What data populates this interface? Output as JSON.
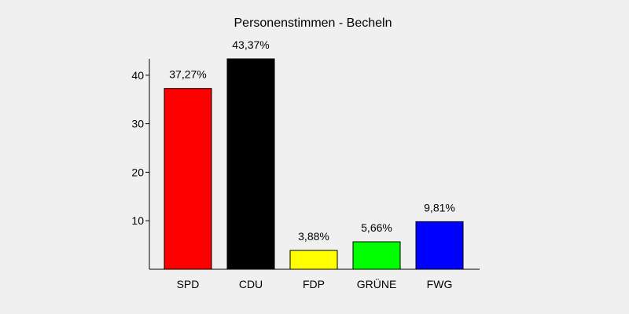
{
  "chart_data": {
    "type": "bar",
    "title": "Personenstimmen - Becheln",
    "categories": [
      "SPD",
      "CDU",
      "FDP",
      "GRÜNE",
      "FWG"
    ],
    "values": [
      37.27,
      43.37,
      3.88,
      5.66,
      9.81
    ],
    "data_labels": [
      "37,27%",
      "43,37%",
      "3,88%",
      "5,66%",
      "9,81%"
    ],
    "colors": [
      "#ff0000",
      "#000000",
      "#ffff00",
      "#00ff00",
      "#0000ff"
    ],
    "yticks": [
      10,
      20,
      30,
      40
    ],
    "ytick_labels": [
      "10",
      "20",
      "30",
      "40"
    ],
    "ylim": [
      0,
      43.37
    ],
    "xlabel": "",
    "ylabel": "",
    "grid": false,
    "legend": "none"
  }
}
